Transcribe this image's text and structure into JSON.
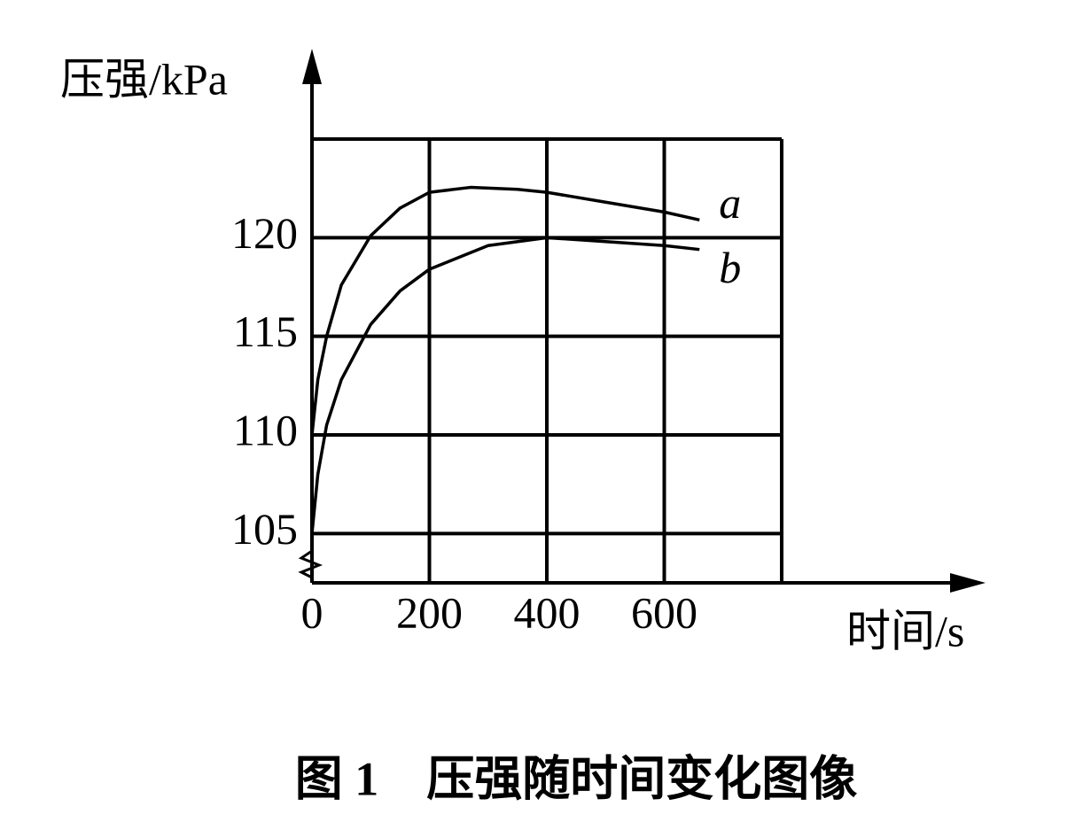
{
  "chart_data": {
    "type": "line",
    "title": "图 1　压强随时间变化图像",
    "y_label": "压强/kPa",
    "x_label": "时间/s",
    "xlim": [
      0,
      800
    ],
    "ylim": [
      102.5,
      125
    ],
    "xticks": [
      0,
      200,
      400,
      600
    ],
    "yticks": [
      105,
      110,
      115,
      120
    ],
    "grid": true,
    "series": [
      {
        "name": "a",
        "color": "#000000",
        "x": [
          0,
          10,
          25,
          50,
          100,
          150,
          200,
          270,
          350,
          400,
          500,
          600,
          660
        ],
        "values": [
          110,
          112.8,
          115,
          117.6,
          120.1,
          121.5,
          122.3,
          122.55,
          122.45,
          122.3,
          121.8,
          121.3,
          120.9
        ]
      },
      {
        "name": "b",
        "color": "#000000",
        "x": [
          0,
          10,
          25,
          50,
          100,
          150,
          200,
          300,
          400,
          500,
          600,
          660
        ],
        "values": [
          105,
          108,
          110.5,
          112.8,
          115.6,
          117.3,
          118.4,
          119.6,
          120,
          119.8,
          119.6,
          119.4
        ]
      }
    ]
  }
}
